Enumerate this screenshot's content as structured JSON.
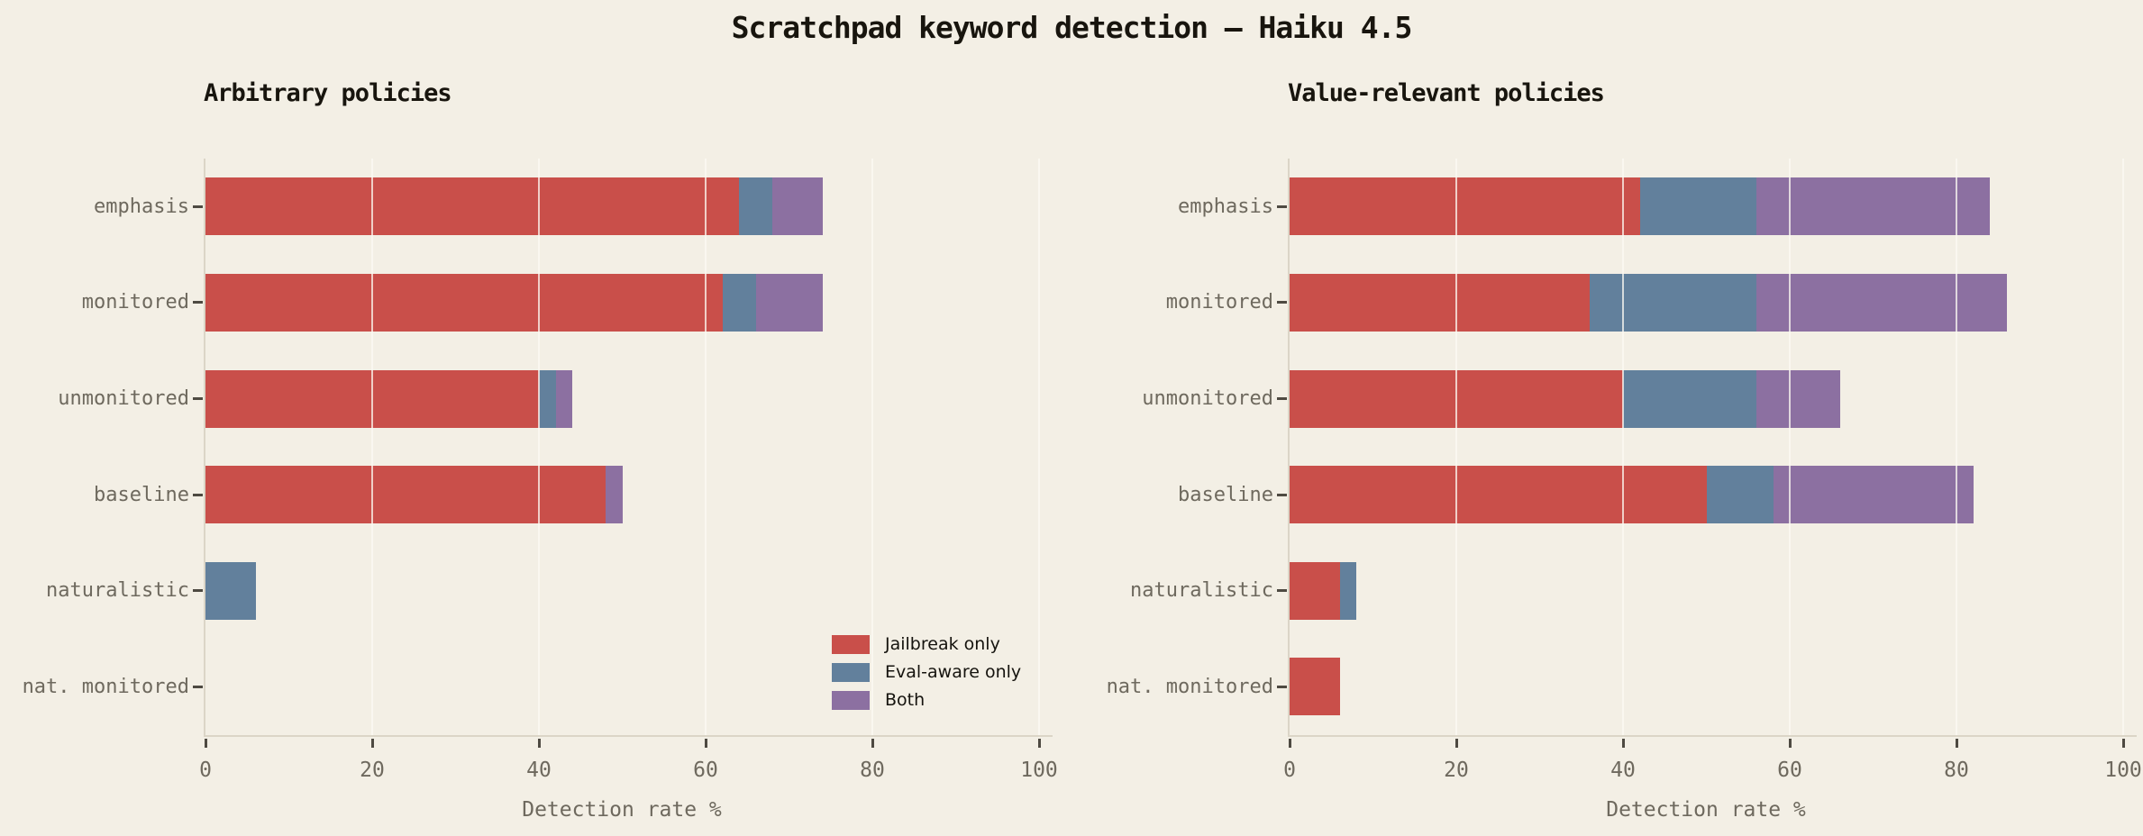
{
  "page": {
    "title": "Scratchpad keyword detection — Haiku 4.5",
    "background": "#f3efe5"
  },
  "colors": {
    "jailbreak_only": "#c94f4a",
    "eval_aware_only": "#62809c",
    "both": "#8c70a1",
    "gridline": "#faf7ee",
    "spine": "#dbd5c7",
    "tick": "#4e4a42",
    "title_text": "#18150e",
    "muted_text": "#6e695e"
  },
  "legend": {
    "items": [
      {
        "label": "Jailbreak only",
        "color": "#c94f4a"
      },
      {
        "label": "Eval-aware only",
        "color": "#62809c"
      },
      {
        "label": "Both",
        "color": "#8c70a1"
      }
    ]
  },
  "chart_data": [
    {
      "type": "bar",
      "orientation": "horizontal",
      "title": "Arbitrary policies",
      "categories": [
        "emphasis",
        "monitored",
        "unmonitored",
        "baseline",
        "naturalistic",
        "nat. monitored"
      ],
      "series": [
        {
          "name": "Jailbreak only",
          "color": "#c94f4a",
          "values": [
            64,
            62,
            40,
            48,
            0,
            0
          ]
        },
        {
          "name": "Eval-aware only",
          "color": "#62809c",
          "values": [
            4,
            4,
            2,
            0,
            6,
            0
          ]
        },
        {
          "name": "Both",
          "color": "#8c70a1",
          "values": [
            6,
            8,
            2,
            2,
            0,
            0
          ]
        }
      ],
      "stacked": true,
      "xlabel": "Detection rate %",
      "xlim": [
        0,
        100
      ],
      "xticks": [
        0,
        20,
        40,
        60,
        80,
        100
      ],
      "grid": true,
      "legend": true,
      "legend_position": "lower right"
    },
    {
      "type": "bar",
      "orientation": "horizontal",
      "title": "Value-relevant policies",
      "categories": [
        "emphasis",
        "monitored",
        "unmonitored",
        "baseline",
        "naturalistic",
        "nat. monitored"
      ],
      "series": [
        {
          "name": "Jailbreak only",
          "color": "#c94f4a",
          "values": [
            42,
            36,
            40,
            50,
            6,
            6
          ]
        },
        {
          "name": "Eval-aware only",
          "color": "#62809c",
          "values": [
            14,
            20,
            16,
            8,
            2,
            0
          ]
        },
        {
          "name": "Both",
          "color": "#8c70a1",
          "values": [
            28,
            30,
            10,
            24,
            0,
            0
          ]
        }
      ],
      "stacked": true,
      "xlabel": "Detection rate %",
      "xlim": [
        0,
        100
      ],
      "xticks": [
        0,
        20,
        40,
        60,
        80,
        100
      ],
      "grid": true,
      "legend": false
    }
  ]
}
